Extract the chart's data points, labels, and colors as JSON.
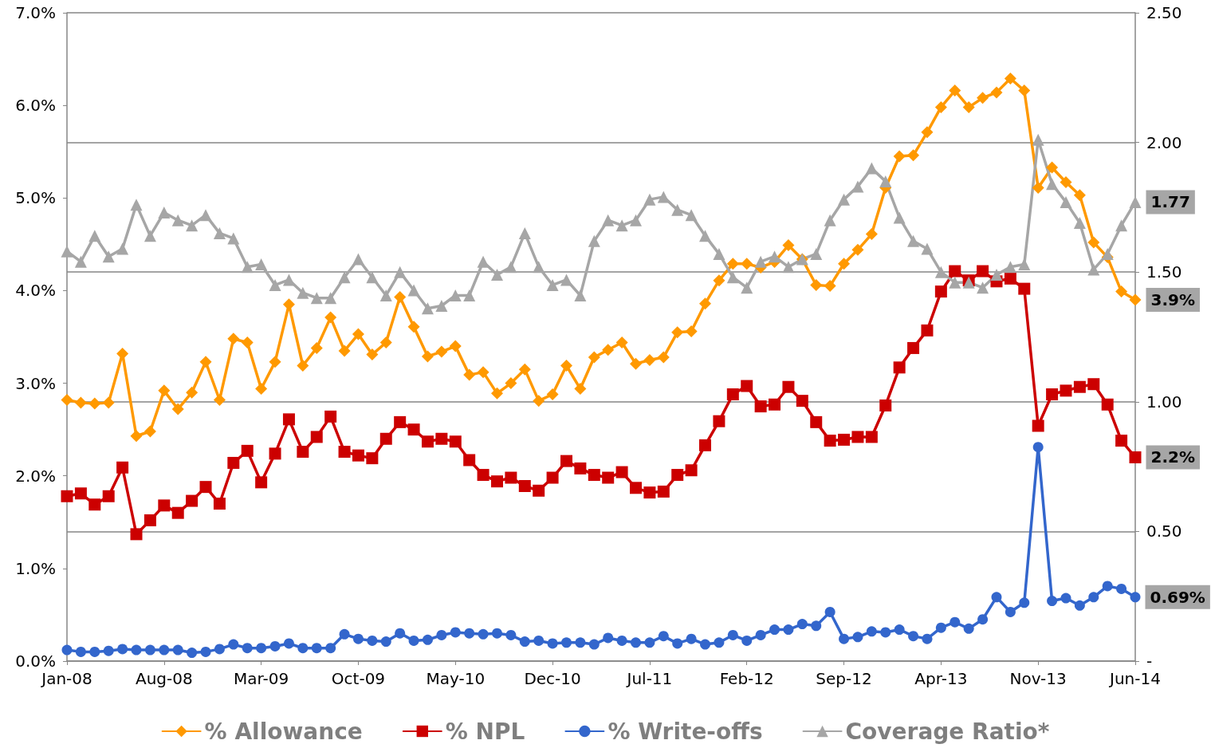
{
  "chart_data": {
    "type": "line",
    "categories": [
      "Jan-08",
      null,
      null,
      null,
      null,
      null,
      null,
      "Aug-08",
      null,
      null,
      null,
      null,
      null,
      null,
      "Mar-09",
      null,
      null,
      null,
      null,
      null,
      null,
      "Oct-09",
      null,
      null,
      null,
      null,
      null,
      null,
      "May-10",
      null,
      null,
      null,
      null,
      null,
      null,
      "Dec-10",
      null,
      null,
      null,
      null,
      null,
      null,
      "Jul-11",
      null,
      null,
      null,
      null,
      null,
      null,
      "Feb-12",
      null,
      null,
      null,
      null,
      null,
      null,
      "Sep-12",
      null,
      null,
      null,
      null,
      null,
      null,
      "Apr-13",
      null,
      null,
      null,
      null,
      null,
      null,
      "Nov-13",
      null,
      null,
      null,
      null,
      null,
      null,
      "Jun-14"
    ],
    "series": [
      {
        "name": "% Allowance",
        "color": "#ff9900",
        "marker": "diamond",
        "values": [
          2.82,
          2.79,
          2.78,
          2.79,
          3.32,
          2.43,
          2.48,
          2.92,
          2.72,
          2.9,
          3.23,
          2.82,
          3.48,
          3.44,
          2.94,
          3.23,
          3.85,
          3.19,
          3.38,
          3.71,
          3.35,
          3.53,
          3.31,
          3.44,
          3.93,
          3.61,
          3.29,
          3.34,
          3.4,
          3.09,
          3.12,
          2.89,
          3.0,
          3.15,
          2.81,
          2.88,
          3.19,
          2.94,
          3.28,
          3.36,
          3.44,
          3.21,
          3.25,
          3.28,
          3.55,
          3.56,
          3.86,
          4.11,
          4.29,
          4.29,
          4.25,
          4.31,
          4.49,
          4.34,
          4.06,
          4.05,
          4.29,
          4.44,
          4.61,
          5.11,
          5.45,
          5.46,
          5.71,
          5.98,
          6.16,
          5.98,
          6.08,
          6.14,
          6.29,
          6.16,
          5.11,
          5.33,
          5.17,
          5.03,
          4.52,
          4.36,
          3.99,
          3.9
        ],
        "value_labels": [
          null,
          null,
          null,
          null,
          null,
          null,
          null,
          null,
          null,
          null,
          null,
          null,
          null,
          null,
          null,
          null,
          null,
          null,
          null,
          null,
          null,
          null,
          null,
          null,
          null,
          null,
          null,
          null,
          null,
          null,
          null,
          null,
          null,
          null,
          null,
          null,
          null,
          null,
          null,
          null,
          null,
          null,
          null,
          null,
          null,
          null,
          null,
          null,
          null,
          null,
          null,
          null,
          null,
          null,
          null,
          null,
          null,
          null,
          null,
          null,
          null,
          null,
          null,
          null,
          null,
          null,
          null,
          null,
          null,
          null,
          null,
          null,
          null,
          null,
          null,
          null,
          null,
          "3.9%"
        ]
      },
      {
        "name": "% NPL",
        "color": "#cc0000",
        "marker": "square",
        "values": [
          1.78,
          1.81,
          1.69,
          1.78,
          2.09,
          1.37,
          1.52,
          1.68,
          1.6,
          1.73,
          1.88,
          1.7,
          2.14,
          2.27,
          1.93,
          2.24,
          2.61,
          2.26,
          2.42,
          2.64,
          2.26,
          2.22,
          2.19,
          2.4,
          2.58,
          2.5,
          2.37,
          2.4,
          2.37,
          2.17,
          2.01,
          1.94,
          1.98,
          1.89,
          1.84,
          1.98,
          2.16,
          2.08,
          2.01,
          1.98,
          2.04,
          1.87,
          1.82,
          1.83,
          2.01,
          2.06,
          2.33,
          2.59,
          2.88,
          2.97,
          2.75,
          2.77,
          2.96,
          2.81,
          2.58,
          2.38,
          2.39,
          2.42,
          2.42,
          2.76,
          3.17,
          3.38,
          3.57,
          3.99,
          4.21,
          4.11,
          4.21,
          4.1,
          4.13,
          4.02,
          2.54,
          2.88,
          2.92,
          2.96,
          2.99,
          2.77,
          2.38,
          2.2
        ],
        "value_labels": [
          null,
          null,
          null,
          null,
          null,
          null,
          null,
          null,
          null,
          null,
          null,
          null,
          null,
          null,
          null,
          null,
          null,
          null,
          null,
          null,
          null,
          null,
          null,
          null,
          null,
          null,
          null,
          null,
          null,
          null,
          null,
          null,
          null,
          null,
          null,
          null,
          null,
          null,
          null,
          null,
          null,
          null,
          null,
          null,
          null,
          null,
          null,
          null,
          null,
          null,
          null,
          null,
          null,
          null,
          null,
          null,
          null,
          null,
          null,
          null,
          null,
          null,
          null,
          null,
          null,
          null,
          null,
          null,
          null,
          null,
          null,
          null,
          null,
          null,
          null,
          null,
          null,
          "2.2%"
        ]
      },
      {
        "name": "% Write-offs",
        "color": "#3366cc",
        "marker": "circle",
        "values": [
          0.12,
          0.1,
          0.1,
          0.11,
          0.13,
          0.12,
          0.12,
          0.12,
          0.12,
          0.09,
          0.1,
          0.13,
          0.18,
          0.14,
          0.14,
          0.16,
          0.19,
          0.14,
          0.14,
          0.14,
          0.29,
          0.24,
          0.22,
          0.21,
          0.3,
          0.22,
          0.23,
          0.28,
          0.31,
          0.3,
          0.29,
          0.3,
          0.28,
          0.21,
          0.22,
          0.19,
          0.2,
          0.2,
          0.18,
          0.25,
          0.22,
          0.2,
          0.2,
          0.27,
          0.19,
          0.24,
          0.18,
          0.2,
          0.28,
          0.22,
          0.28,
          0.34,
          0.34,
          0.4,
          0.38,
          0.53,
          0.24,
          0.26,
          0.32,
          0.31,
          0.34,
          0.27,
          0.24,
          0.36,
          0.42,
          0.35,
          0.45,
          0.69,
          0.53,
          0.63,
          2.31,
          0.65,
          0.68,
          0.6,
          0.69,
          0.81,
          0.78,
          0.69
        ],
        "value_labels": [
          null,
          null,
          null,
          null,
          null,
          null,
          null,
          null,
          null,
          null,
          null,
          null,
          null,
          null,
          null,
          null,
          null,
          null,
          null,
          null,
          null,
          null,
          null,
          null,
          null,
          null,
          null,
          null,
          null,
          null,
          null,
          null,
          null,
          null,
          null,
          null,
          null,
          null,
          null,
          null,
          null,
          null,
          null,
          null,
          null,
          null,
          null,
          null,
          null,
          null,
          null,
          null,
          null,
          null,
          null,
          null,
          null,
          null,
          null,
          null,
          null,
          null,
          null,
          null,
          null,
          null,
          null,
          null,
          null,
          null,
          null,
          null,
          null,
          null,
          null,
          null,
          null,
          "0.69%"
        ]
      },
      {
        "name": "Coverage Ratio*",
        "color": "#a6a6a6",
        "marker": "triangle",
        "axis": "y2",
        "values": [
          1.58,
          1.54,
          1.64,
          1.56,
          1.59,
          1.76,
          1.64,
          1.73,
          1.7,
          1.68,
          1.72,
          1.65,
          1.63,
          1.52,
          1.53,
          1.45,
          1.47,
          1.42,
          1.4,
          1.4,
          1.48,
          1.55,
          1.48,
          1.41,
          1.5,
          1.43,
          1.36,
          1.37,
          1.41,
          1.41,
          1.54,
          1.49,
          1.52,
          1.65,
          1.52,
          1.45,
          1.47,
          1.41,
          1.62,
          1.7,
          1.68,
          1.7,
          1.78,
          1.79,
          1.74,
          1.72,
          1.64,
          1.57,
          1.48,
          1.44,
          1.54,
          1.56,
          1.52,
          1.55,
          1.57,
          1.7,
          1.78,
          1.83,
          1.9,
          1.85,
          1.71,
          1.62,
          1.59,
          1.5,
          1.46,
          1.46,
          1.44,
          1.49,
          1.52,
          1.53,
          2.01,
          1.84,
          1.77,
          1.69,
          1.51,
          1.57,
          1.68,
          1.77
        ],
        "value_labels": [
          null,
          null,
          null,
          null,
          null,
          null,
          null,
          null,
          null,
          null,
          null,
          null,
          null,
          null,
          null,
          null,
          null,
          null,
          null,
          null,
          null,
          null,
          null,
          null,
          null,
          null,
          null,
          null,
          null,
          null,
          null,
          null,
          null,
          null,
          null,
          null,
          null,
          null,
          null,
          null,
          null,
          null,
          null,
          null,
          null,
          null,
          null,
          null,
          null,
          null,
          null,
          null,
          null,
          null,
          null,
          null,
          null,
          null,
          null,
          null,
          null,
          null,
          null,
          null,
          null,
          null,
          null,
          null,
          null,
          null,
          null,
          null,
          null,
          null,
          null,
          null,
          null,
          "1.77"
        ]
      }
    ],
    "ylim": [
      0,
      7
    ],
    "yticks": [
      {
        "value": 0,
        "label": "0.0%"
      },
      {
        "value": 1,
        "label": "1.0%"
      },
      {
        "value": 2,
        "label": "2.0%"
      },
      {
        "value": 3,
        "label": "3.0%"
      },
      {
        "value": 4,
        "label": "4.0%"
      },
      {
        "value": 5,
        "label": "5.0%"
      },
      {
        "value": 6,
        "label": "6.0%"
      },
      {
        "value": 7,
        "label": "7.0%"
      }
    ],
    "y2lim": [
      0,
      2.5
    ],
    "y2ticks": [
      {
        "value": 0,
        "label": "-"
      },
      {
        "value": 0.5,
        "label": "0.50"
      },
      {
        "value": 1,
        "label": "1.00"
      },
      {
        "value": 1.5,
        "label": "1.50"
      },
      {
        "value": 2,
        "label": "2.00"
      },
      {
        "value": 2.5,
        "label": "2.50"
      }
    ],
    "grid": "y",
    "legend": "bottom",
    "line_style": "solid"
  }
}
